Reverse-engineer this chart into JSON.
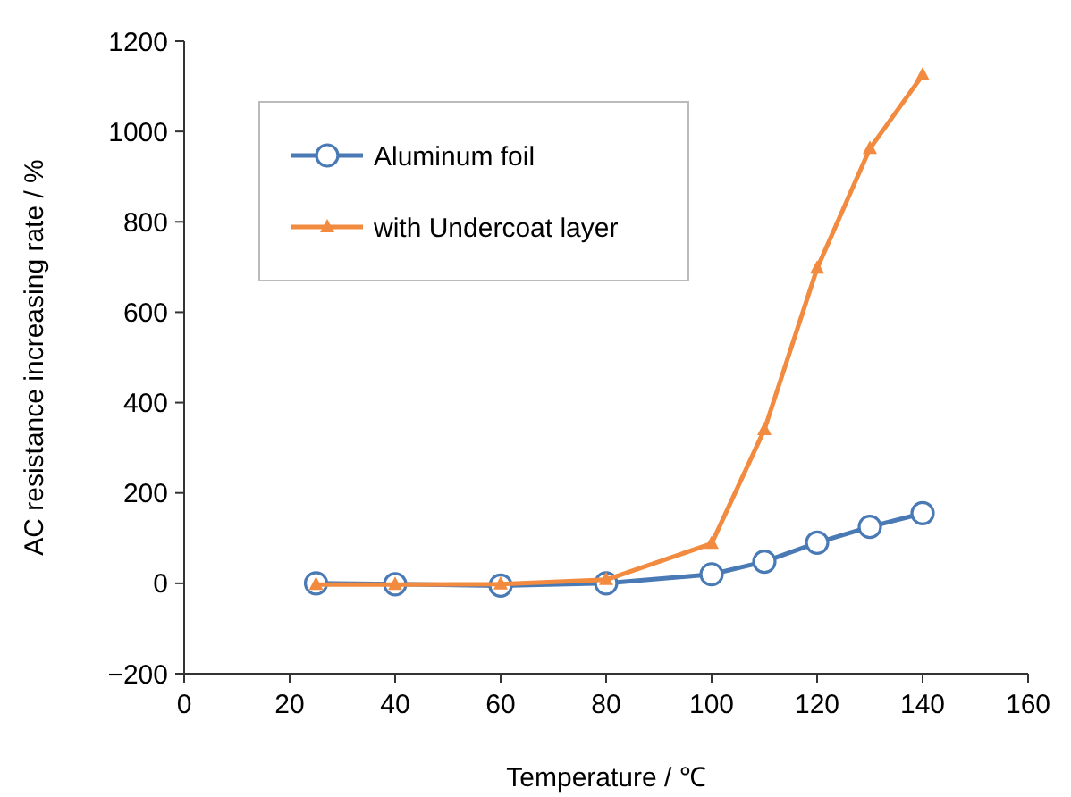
{
  "chart_data": {
    "type": "line",
    "xlabel": "Temperature / ℃",
    "ylabel": "AC resistance increasing rate / %",
    "x": [
      25,
      40,
      60,
      80,
      100,
      110,
      120,
      130,
      140
    ],
    "series": [
      {
        "name": "Aluminum foil",
        "color": "#4a7ab5",
        "marker": "circle",
        "values": [
          0,
          -2,
          -5,
          0,
          20,
          48,
          90,
          125,
          155
        ]
      },
      {
        "name": "with Undercoat layer",
        "color": "#f28a3f",
        "marker": "triangle",
        "values": [
          -3,
          -3,
          -2,
          8,
          88,
          340,
          697,
          962,
          1125
        ]
      }
    ],
    "xlim": [
      0,
      160
    ],
    "xticks": [
      0,
      20,
      40,
      60,
      80,
      100,
      120,
      140,
      160
    ],
    "ylim": [
      -200,
      1200
    ],
    "yticks": [
      {
        "value": -200,
        "label": "−200"
      },
      0,
      200,
      400,
      600,
      800,
      1000,
      1200
    ],
    "grid": false,
    "legend": "top left",
    "line_style": "solid"
  }
}
